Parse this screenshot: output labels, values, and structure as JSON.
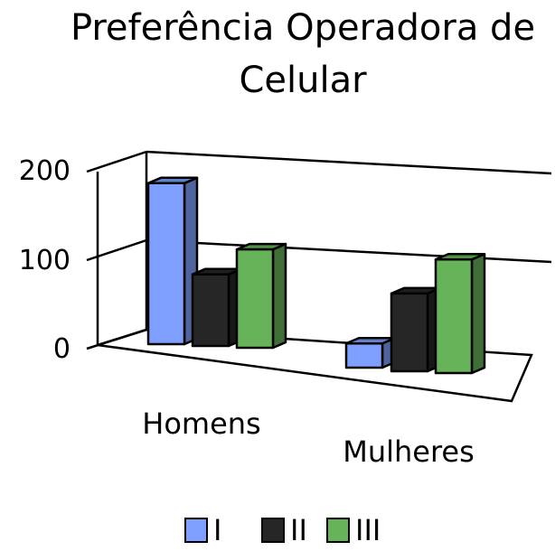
{
  "chart_data": {
    "type": "bar",
    "title": [
      "Preferência Operadora de",
      "Celular"
    ],
    "categories": [
      "Homens",
      "Mulheres"
    ],
    "series": [
      {
        "name": "I",
        "values": [
          180,
          27
        ],
        "color": "#7f9fff"
      },
      {
        "name": "II",
        "values": [
          80,
          87
        ],
        "color": "#262626"
      },
      {
        "name": "III",
        "values": [
          110,
          127
        ],
        "color": "#66b359"
      }
    ],
    "yticks": [
      "0",
      "100",
      "200"
    ],
    "ylim": [
      0,
      200
    ],
    "grid": true,
    "legend": "bottom"
  }
}
